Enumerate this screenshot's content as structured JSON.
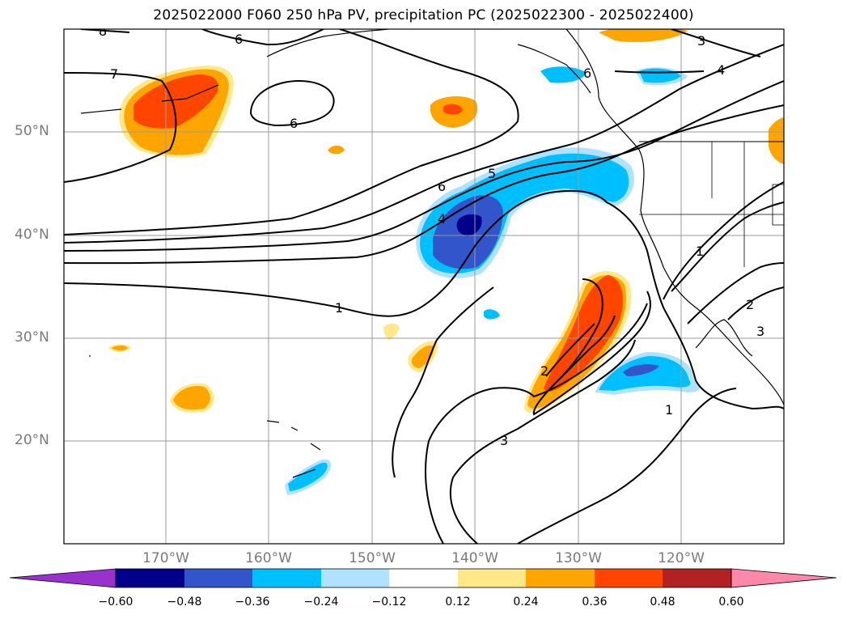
{
  "title": "2025022000 F060 250 hPa PV, precipitation PC (2025022300 - 2025022400)",
  "latitude_labels": [
    {
      "value": "50°N"
    },
    {
      "value": "40°N"
    },
    {
      "value": "30°N"
    },
    {
      "value": "20°N"
    }
  ],
  "longitude_labels": [
    {
      "value": "170°W"
    },
    {
      "value": "160°W"
    },
    {
      "value": "150°W"
    },
    {
      "value": "140°W"
    },
    {
      "value": "130°W"
    },
    {
      "value": "120°W"
    }
  ],
  "pv_contour_labels": [
    "8",
    "6",
    "7",
    "6",
    "5",
    "6",
    "4",
    "1",
    "2",
    "3",
    "1",
    "1",
    "2",
    "3",
    "3",
    "4",
    "6"
  ],
  "colorbar": {
    "ticks": [
      "−0.60",
      "−0.48",
      "−0.36",
      "−0.24",
      "−0.12",
      "0.12",
      "0.24",
      "0.36",
      "0.48",
      "0.60"
    ],
    "colors": [
      "#9932cc",
      "#00008b",
      "#3355cc",
      "#00bfff",
      "#b0e2ff",
      "#ffffff",
      "#ffe88a",
      "#ffa500",
      "#ff4500",
      "#b22222",
      "#ff88aa"
    ]
  }
}
